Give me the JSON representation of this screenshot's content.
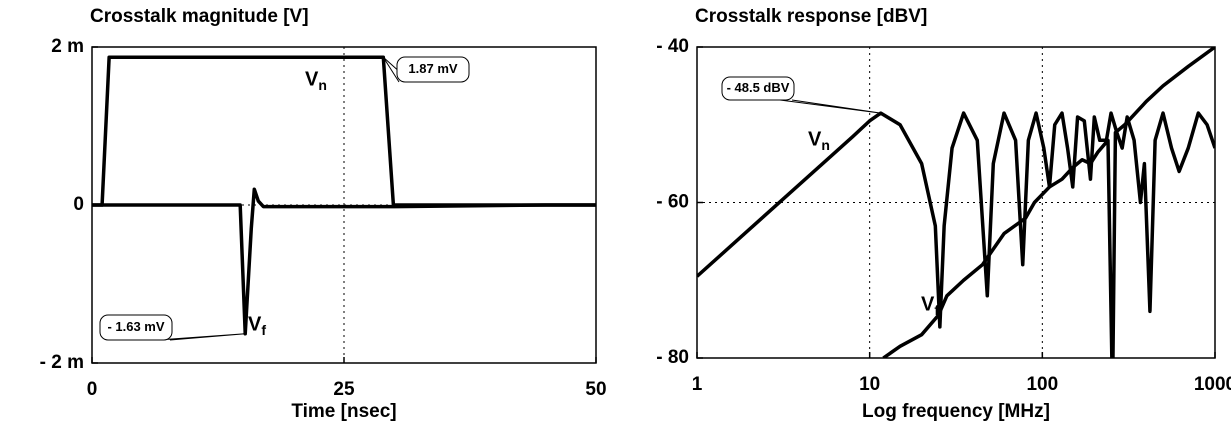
{
  "chart_data": [
    {
      "type": "line",
      "title": "Crosstalk magnitude [V]",
      "x_label": "Time [nsec]",
      "xlim": [
        0,
        50
      ],
      "xticks": [
        0,
        25,
        50
      ],
      "ylim": [
        -0.002,
        0.002
      ],
      "yticks": [
        {
          "value": 0.002,
          "label": "2 m"
        },
        0,
        {
          "value": -0.002,
          "label": "- 2 m"
        }
      ],
      "grid": true,
      "series": [
        {
          "name": "Vn",
          "color": "#000000",
          "x": [
            0,
            1,
            1.7,
            28.9,
            29.9,
            50
          ],
          "values": [
            0,
            0,
            0.00187,
            0.00187,
            0,
            0
          ]
        },
        {
          "name": "Vf",
          "color": "#000000",
          "x": [
            0,
            14.7,
            15.2,
            15.8,
            16.1,
            16.5,
            17,
            30,
            45,
            50
          ],
          "values": [
            0,
            0,
            -0.00163,
            -0.0003,
            0.0002,
            5e-05,
            -2e-05,
            -2e-05,
            0,
            0
          ]
        }
      ],
      "annotations": [
        {
          "text": "1.87 mV",
          "x": 28.9,
          "y": 0.00187
        },
        {
          "text": "- 1.63 mV",
          "x": 15.2,
          "y": -0.00163
        }
      ]
    },
    {
      "type": "line",
      "title": "Crosstalk response [dBV]",
      "x_label": "Log frequency [MHz]",
      "x_scale": "log",
      "xlim": [
        1,
        1000
      ],
      "xticks": [
        1,
        10,
        100,
        1000
      ],
      "ylim": [
        -80,
        -40
      ],
      "yticks": [
        {
          "value": -40,
          "label": "- 40"
        },
        {
          "value": -60,
          "label": "- 60"
        },
        {
          "value": -80,
          "label": "- 80"
        }
      ],
      "grid": true,
      "series": [
        {
          "name": "Vn",
          "color": "#000000",
          "x": [
            1,
            2,
            4,
            6,
            8,
            10,
            11.6,
            15,
            20,
            24,
            25.5,
            27,
            30,
            35,
            42,
            48,
            52,
            60,
            70,
            77,
            83,
            92,
            102,
            110,
            118,
            130,
            140,
            150,
            160,
            175,
            190,
            200,
            215,
            235,
            250,
            270,
            290,
            310,
            340,
            370,
            390,
            420,
            450,
            500,
            560,
            620,
            700,
            800,
            900,
            1000
          ],
          "values": [
            -69.5,
            -63.5,
            -57.5,
            -54,
            -51.5,
            -49.5,
            -48.5,
            -50,
            -55,
            -63,
            -76,
            -63,
            -53,
            -48.5,
            -52,
            -72,
            -55,
            -48.5,
            -52,
            -68,
            -52,
            -48.5,
            -53,
            -58,
            -50,
            -48.5,
            -53,
            -58,
            -49,
            -49.5,
            -57,
            -49,
            -52,
            -52,
            -48.5,
            -51,
            -53,
            -49,
            -52,
            -60,
            -55,
            -74,
            -52,
            -48.5,
            -53,
            -56,
            -53,
            -48.5,
            -50,
            -53
          ]
        },
        {
          "name": "Vf",
          "color": "#000000",
          "x": [
            12,
            15,
            20,
            25,
            28,
            35,
            45,
            60,
            80,
            90,
            110,
            130,
            150,
            170,
            190,
            210,
            240,
            255,
            265,
            300,
            400,
            500,
            700,
            1000
          ],
          "values": [
            -80,
            -78.5,
            -77,
            -74.5,
            -72,
            -70,
            -68,
            -64,
            -62,
            -60,
            -58,
            -57,
            -55.5,
            -54.5,
            -55,
            -53.5,
            -52,
            -85,
            -51,
            -50,
            -47,
            -45,
            -42.5,
            -40
          ]
        }
      ],
      "annotations": [
        {
          "text": "- 48.5 dBV",
          "x": 11.6,
          "y": -48.5
        }
      ]
    }
  ]
}
